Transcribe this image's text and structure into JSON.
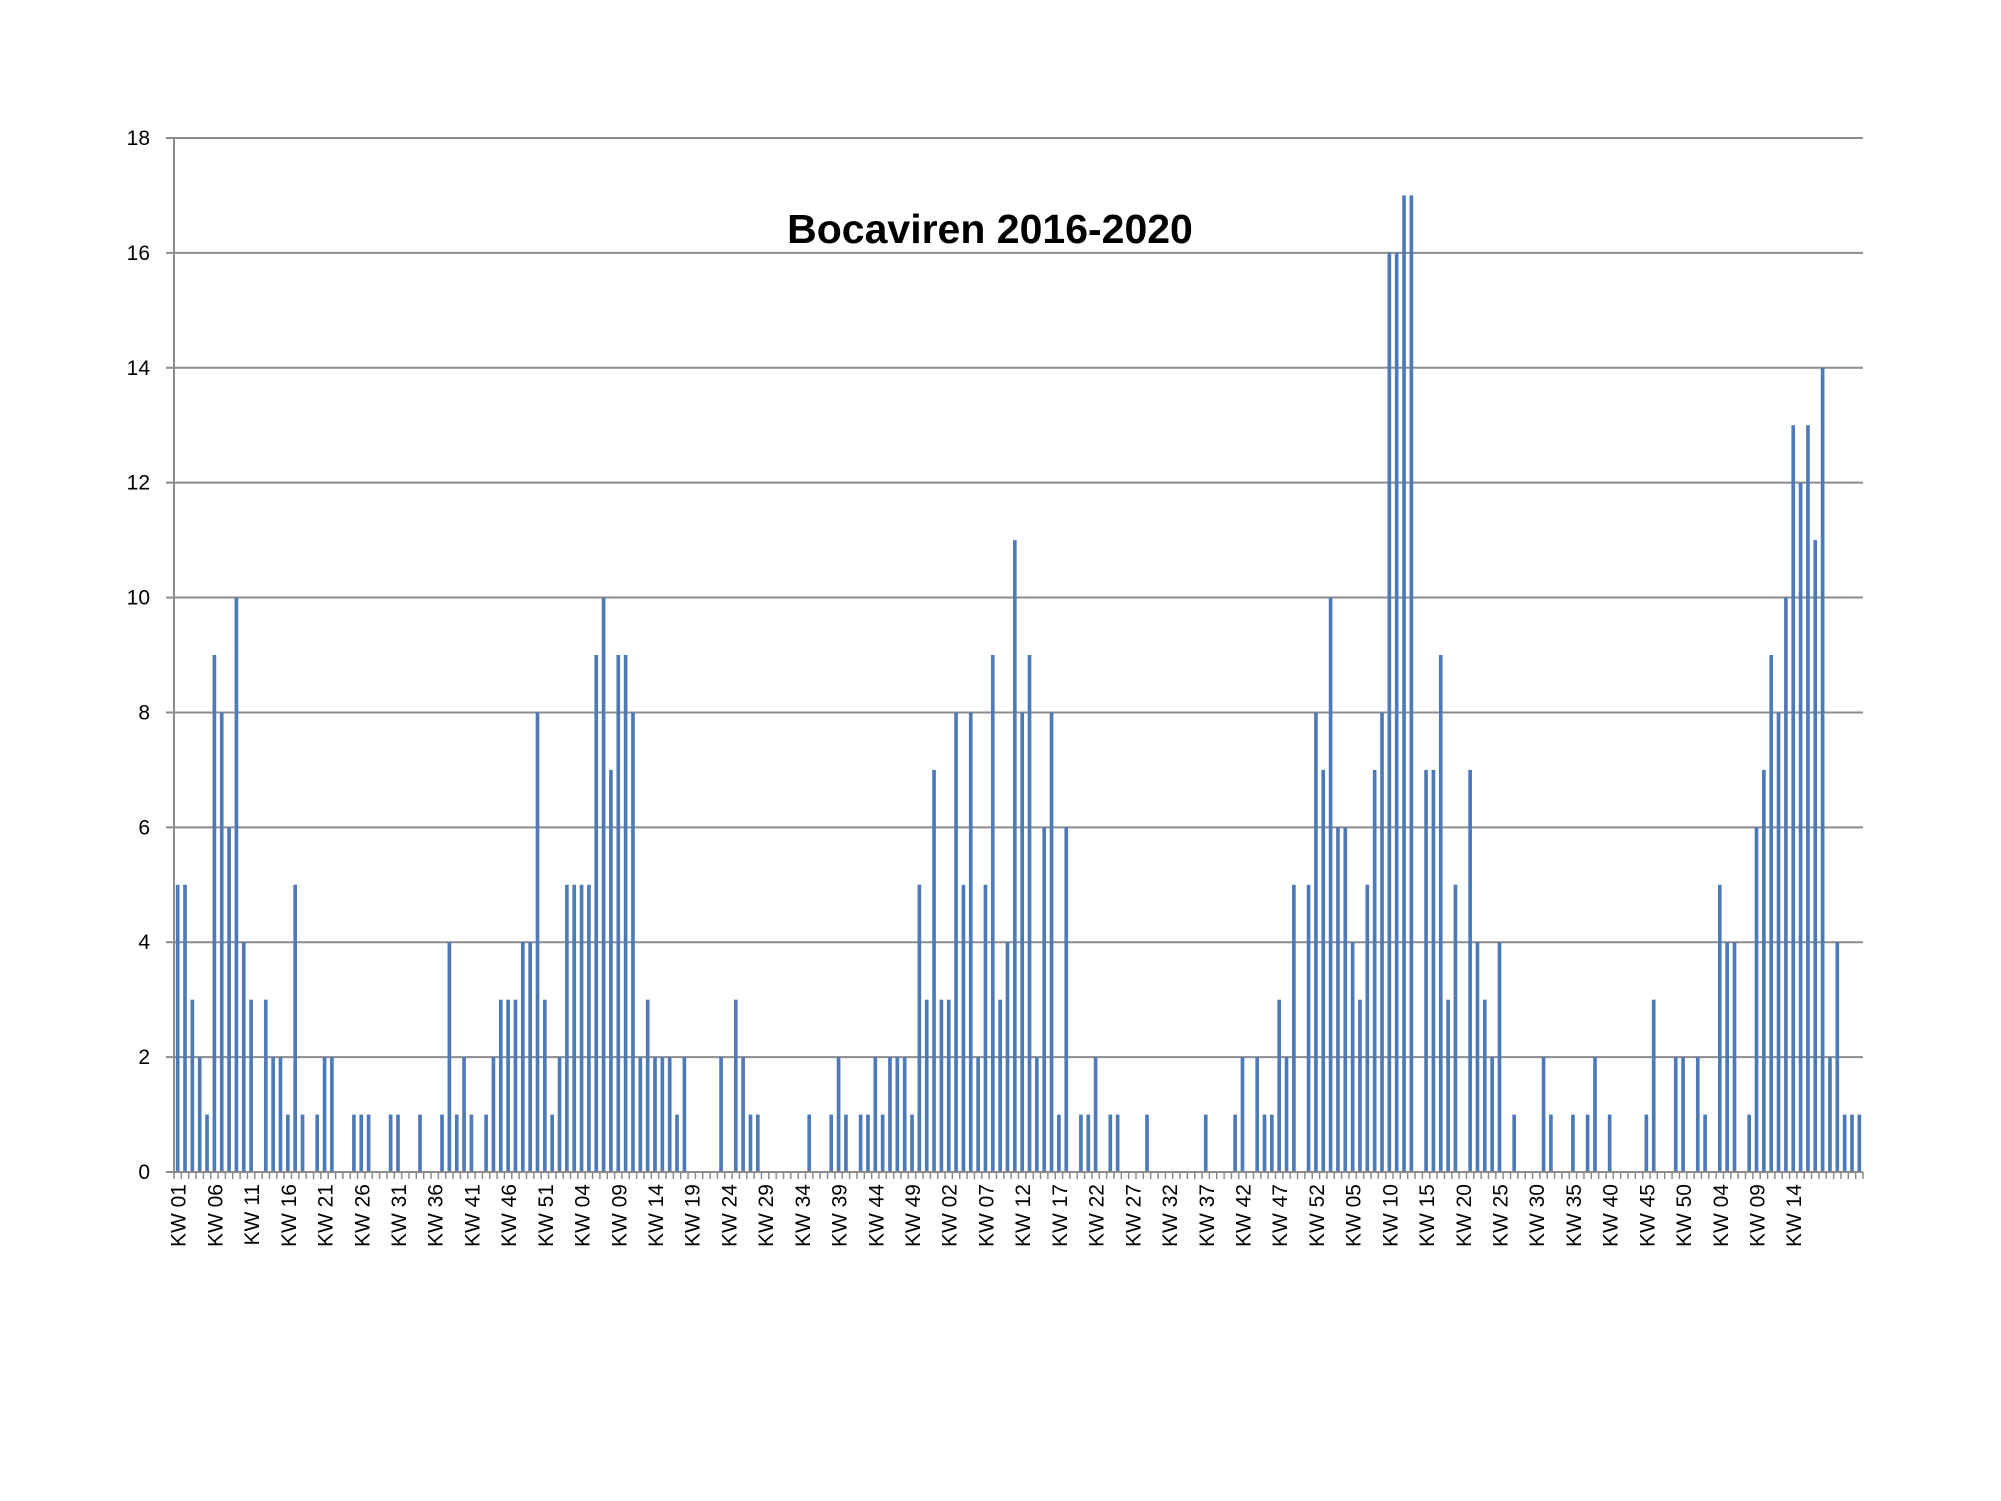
{
  "chart_data": {
    "type": "bar",
    "title": "Bocaviren 2016-2020",
    "xlabel": "",
    "ylabel": "",
    "ylim": [
      0,
      18
    ],
    "yticks": [
      0,
      2,
      4,
      6,
      8,
      10,
      12,
      14,
      16,
      18
    ],
    "grid": true,
    "legend": "none",
    "bar_color": "#4f7ab8",
    "grid_color": "#8c8c8c",
    "x_tick_labels": [
      "KW 01",
      "KW 06",
      "KW 11",
      "KW 16",
      "KW 21",
      "KW 26",
      "KW 31",
      "KW 36",
      "KW 41",
      "KW 46",
      "KW 51",
      "KW 04",
      "KW 09",
      "KW 14",
      "KW 19",
      "KW 24",
      "KW 29",
      "KW 34",
      "KW 39",
      "KW 44",
      "KW 49",
      "KW 02",
      "KW 07",
      "KW 12",
      "KW 17",
      "KW 22",
      "KW 27",
      "KW 32",
      "KW 37",
      "KW 42",
      "KW 47",
      "KW 52",
      "KW 05",
      "KW 10",
      "KW 15",
      "KW 20",
      "KW 25",
      "KW 30",
      "KW 35",
      "KW 40",
      "KW 45",
      "KW 50",
      "KW 04",
      "KW 09",
      "KW 14"
    ],
    "label_every": 5,
    "values": [
      5,
      5,
      3,
      2,
      1,
      9,
      8,
      6,
      10,
      4,
      3,
      0,
      3,
      2,
      2,
      1,
      5,
      1,
      0,
      1,
      2,
      2,
      0,
      0,
      1,
      1,
      1,
      0,
      0,
      1,
      1,
      0,
      0,
      1,
      0,
      0,
      1,
      4,
      1,
      2,
      1,
      0,
      1,
      2,
      3,
      3,
      3,
      4,
      4,
      8,
      3,
      1,
      2,
      5,
      5,
      5,
      5,
      9,
      10,
      7,
      9,
      9,
      8,
      2,
      3,
      2,
      2,
      2,
      1,
      2,
      0,
      0,
      0,
      0,
      2,
      0,
      3,
      2,
      1,
      1,
      0,
      0,
      0,
      0,
      0,
      0,
      1,
      0,
      0,
      1,
      2,
      1,
      0,
      1,
      1,
      2,
      1,
      2,
      2,
      2,
      1,
      5,
      3,
      7,
      3,
      3,
      8,
      5,
      8,
      2,
      5,
      9,
      3,
      4,
      11,
      8,
      9,
      2,
      6,
      8,
      1,
      6,
      0,
      1,
      1,
      2,
      0,
      1,
      1,
      0,
      0,
      0,
      1,
      0,
      0,
      0,
      0,
      0,
      0,
      0,
      1,
      0,
      0,
      0,
      1,
      2,
      0,
      2,
      1,
      1,
      3,
      2,
      5,
      0,
      5,
      8,
      7,
      10,
      6,
      6,
      4,
      3,
      5,
      7,
      8,
      16,
      16,
      17,
      17,
      0,
      7,
      7,
      9,
      3,
      5,
      0,
      7,
      4,
      3,
      2,
      4,
      0,
      1,
      0,
      0,
      0,
      2,
      1,
      0,
      0,
      1,
      0,
      1,
      2,
      0,
      1,
      0,
      0,
      0,
      0,
      1,
      3,
      0,
      0,
      2,
      2,
      0,
      2,
      1,
      0,
      5,
      4,
      4,
      0,
      1,
      6,
      7,
      9,
      8,
      10,
      13,
      12,
      13,
      11,
      14,
      2,
      4,
      1,
      1,
      1
    ]
  }
}
